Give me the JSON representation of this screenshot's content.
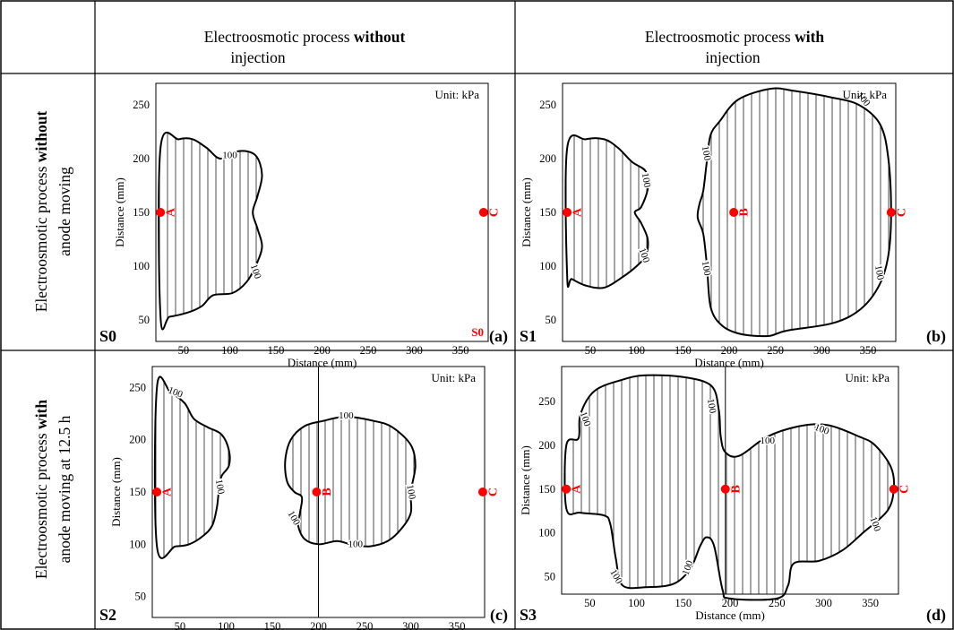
{
  "header": {
    "col1_title_pre": "Electroosmotic process ",
    "col1_title_bold": "without",
    "col1_title_line2": "injection",
    "col2_title_pre": "Electroosmotic process ",
    "col2_title_bold": "with",
    "col2_title_line2": "injection",
    "row1_label_pre": "Electroosmotic process ",
    "row1_label_bold": "without",
    "row1_label_line2": "anode moving",
    "row2_label_pre": "Electroosmotic process ",
    "row2_label_bold": "with",
    "row2_label_line2": "anode moving at 12.5 h"
  },
  "colors": {
    "marker": "#ff0000",
    "line": "#000000",
    "border": "#000000"
  },
  "chart_data": [
    {
      "type": "contour",
      "scenario": "S0",
      "panel_label": "(a)",
      "unit_text": "Unit: kPa",
      "corner_text": "S0",
      "xlabel": "Distance (mm)",
      "ylabel": "Distance (mm)",
      "xlim": [
        20,
        380
      ],
      "ylim": [
        30,
        270
      ],
      "xticks": [
        50,
        100,
        150,
        200,
        250,
        300,
        350
      ],
      "yticks": [
        50,
        100,
        150,
        200,
        250
      ],
      "contour_level": "100",
      "points": [
        {
          "name": "A",
          "x": 25,
          "y": 150
        },
        {
          "name": "C",
          "x": 375,
          "y": 150
        }
      ],
      "regions": [
        {
          "outline": [
            [
              25,
              210
            ],
            [
              45,
              218
            ],
            [
              60,
              218
            ],
            [
              75,
              210
            ],
            [
              90,
              200
            ],
            [
              110,
              207
            ],
            [
              128,
              203
            ],
            [
              135,
              185
            ],
            [
              130,
              165
            ],
            [
              125,
              150
            ],
            [
              130,
              135
            ],
            [
              135,
              118
            ],
            [
              128,
              100
            ],
            [
              118,
              85
            ],
            [
              103,
              75
            ],
            [
              82,
              73
            ],
            [
              70,
              63
            ],
            [
              55,
              57
            ],
            [
              35,
              53
            ],
            [
              25,
              53
            ]
          ],
          "labels": [
            [
              100,
              203,
              0
            ],
            [
              128,
              95,
              70
            ]
          ]
        }
      ]
    },
    {
      "type": "contour",
      "scenario": "S1",
      "panel_label": "(b)",
      "unit_text": "Unit: kPa",
      "xlabel": "Distance (mm)",
      "ylabel": "Distance (mm)",
      "xlim": [
        20,
        380
      ],
      "ylim": [
        30,
        270
      ],
      "xticks": [
        50,
        100,
        150,
        200,
        250,
        300,
        350
      ],
      "yticks": [
        50,
        100,
        150,
        200,
        250
      ],
      "contour_level": "100",
      "points": [
        {
          "name": "A",
          "x": 25,
          "y": 150
        },
        {
          "name": "B",
          "x": 205,
          "y": 150
        },
        {
          "name": "C",
          "x": 375,
          "y": 150
        }
      ],
      "regions": [
        {
          "outline": [
            [
              25,
              210
            ],
            [
              45,
              218
            ],
            [
              65,
              218
            ],
            [
              80,
              210
            ],
            [
              95,
              197
            ],
            [
              110,
              188
            ],
            [
              112,
              172
            ],
            [
              105,
              155
            ],
            [
              98,
              150
            ],
            [
              105,
              140
            ],
            [
              112,
              125
            ],
            [
              110,
              110
            ],
            [
              100,
              100
            ],
            [
              85,
              90
            ],
            [
              65,
              80
            ],
            [
              45,
              82
            ],
            [
              30,
              88
            ],
            [
              25,
              90
            ]
          ],
          "labels": [
            [
              110,
              180,
              80
            ],
            [
              108,
              110,
              70
            ]
          ]
        },
        {
          "outline": [
            [
              190,
              235
            ],
            [
              210,
              255
            ],
            [
              245,
              265
            ],
            [
              270,
              263
            ],
            [
              310,
              257
            ],
            [
              340,
              250
            ],
            [
              363,
              232
            ],
            [
              372,
              200
            ],
            [
              375,
              150
            ],
            [
              372,
              110
            ],
            [
              362,
              82
            ],
            [
              342,
              60
            ],
            [
              312,
              47
            ],
            [
              262,
              40
            ],
            [
              242,
              35
            ],
            [
              212,
              37
            ],
            [
              192,
              45
            ],
            [
              180,
              62
            ],
            [
              176,
              100
            ],
            [
              172,
              130
            ],
            [
              166,
              145
            ],
            [
              168,
              158
            ],
            [
              172,
              170
            ],
            [
              176,
              198
            ],
            [
              180,
              222
            ]
          ],
          "labels": [
            [
              345,
              255,
              50
            ],
            [
              175,
              205,
              80
            ],
            [
              175,
              98,
              80
            ],
            [
              362,
              94,
              80
            ]
          ]
        }
      ]
    },
    {
      "type": "contour",
      "scenario": "S2",
      "panel_label": "(c)",
      "unit_text": "Unit: kPa",
      "xlabel": "Distance (mm)",
      "ylabel": "Distance (mm)",
      "xlim": [
        20,
        380
      ],
      "ylim": [
        30,
        270
      ],
      "xticks": [
        50,
        100,
        150,
        200,
        250,
        300,
        350
      ],
      "yticks": [
        50,
        100,
        150,
        200,
        250
      ],
      "contour_level": "100",
      "vline_x": 200,
      "points": [
        {
          "name": "A",
          "x": 25,
          "y": 150
        },
        {
          "name": "B",
          "x": 198,
          "y": 150
        },
        {
          "name": "C",
          "x": 378,
          "y": 150
        }
      ],
      "regions": [
        {
          "outline": [
            [
              25,
              250
            ],
            [
              40,
              245
            ],
            [
              55,
              235
            ],
            [
              65,
              220
            ],
            [
              80,
              212
            ],
            [
              95,
              205
            ],
            [
              103,
              190
            ],
            [
              103,
              175
            ],
            [
              95,
              165
            ],
            [
              92,
              150
            ],
            [
              90,
              135
            ],
            [
              85,
              118
            ],
            [
              75,
              108
            ],
            [
              60,
              100
            ],
            [
              45,
              98
            ],
            [
              25,
              98
            ]
          ],
          "labels": [
            [
              45,
              245,
              20
            ],
            [
              93,
              155,
              80
            ]
          ]
        },
        {
          "outline": [
            [
              170,
              200
            ],
            [
              185,
              213
            ],
            [
              205,
              218
            ],
            [
              230,
              222
            ],
            [
              260,
              218
            ],
            [
              280,
              212
            ],
            [
              300,
              195
            ],
            [
              305,
              175
            ],
            [
              300,
              150
            ],
            [
              300,
              130
            ],
            [
              290,
              115
            ],
            [
              275,
              103
            ],
            [
              255,
              98
            ],
            [
              235,
              100
            ],
            [
              220,
              103
            ],
            [
              200,
              100
            ],
            [
              185,
              105
            ],
            [
              178,
              118
            ],
            [
              180,
              130
            ],
            [
              182,
              145
            ],
            [
              174,
              150
            ],
            [
              166,
              160
            ],
            [
              164,
              180
            ]
          ],
          "labels": [
            [
              230,
              223,
              0
            ],
            [
              300,
              150,
              80
            ],
            [
              240,
              100,
              0
            ],
            [
              173,
              125,
              60
            ]
          ]
        }
      ]
    },
    {
      "type": "contour",
      "scenario": "S3",
      "panel_label": "(d)",
      "unit_text": "Unit: kPa",
      "xlabel": "Distance (mm)",
      "ylabel": "Distance (mm)",
      "xlim": [
        20,
        380
      ],
      "ylim": [
        30,
        290
      ],
      "xticks": [
        50,
        100,
        150,
        200,
        250,
        300,
        350
      ],
      "yticks": [
        50,
        100,
        150,
        200,
        250
      ],
      "contour_level": "100",
      "vline_x": 195,
      "points": [
        {
          "name": "A",
          "x": 25,
          "y": 150
        },
        {
          "name": "B",
          "x": 195,
          "y": 150
        },
        {
          "name": "C",
          "x": 375,
          "y": 150
        }
      ],
      "regions": [
        {
          "outline": [
            [
              25,
              200
            ],
            [
              38,
              208
            ],
            [
              40,
              235
            ],
            [
              55,
              262
            ],
            [
              85,
              275
            ],
            [
              110,
              280
            ],
            [
              150,
              278
            ],
            [
              180,
              268
            ],
            [
              188,
              240
            ],
            [
              190,
              210
            ],
            [
              195,
              192
            ],
            [
              210,
              188
            ],
            [
              240,
              210
            ],
            [
              275,
              222
            ],
            [
              305,
              223
            ],
            [
              338,
              210
            ],
            [
              355,
              200
            ],
            [
              372,
              175
            ],
            [
              375,
              150
            ],
            [
              368,
              125
            ],
            [
              342,
              100
            ],
            [
              320,
              80
            ],
            [
              295,
              68
            ],
            [
              268,
              65
            ],
            [
              262,
              40
            ],
            [
              250,
              25
            ],
            [
              200,
              25
            ],
            [
              192,
              35
            ],
            [
              183,
              85
            ],
            [
              175,
              95
            ],
            [
              168,
              85
            ],
            [
              158,
              60
            ],
            [
              140,
              42
            ],
            [
              110,
              38
            ],
            [
              85,
              40
            ],
            [
              78,
              70
            ],
            [
              72,
              110
            ],
            [
              65,
              120
            ],
            [
              40,
              123
            ],
            [
              25,
              128
            ]
          ],
          "labels": [
            [
              45,
              230,
              70
            ],
            [
              180,
              245,
              80
            ],
            [
              240,
              205,
              0
            ],
            [
              298,
              218,
              20
            ],
            [
              355,
              110,
              70
            ],
            [
              78,
              50,
              60
            ],
            [
              155,
              60,
              -70
            ]
          ]
        }
      ]
    }
  ]
}
